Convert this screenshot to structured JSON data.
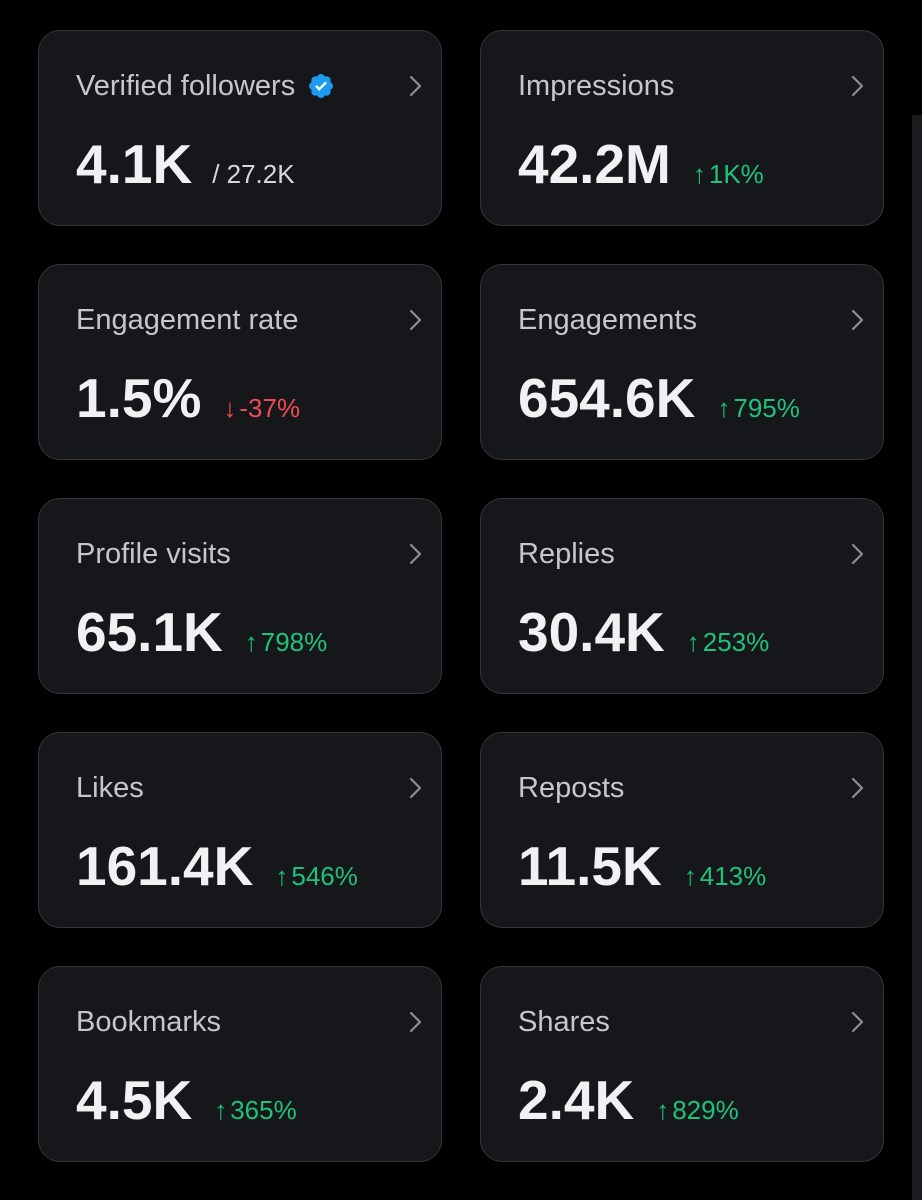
{
  "colors": {
    "background": "#000000",
    "card": "#16171b",
    "card_border": "#34363b",
    "positive": "#1ec27a",
    "negative": "#f04a55",
    "verified": "#1d9bf0"
  },
  "metrics": [
    {
      "title": "Verified followers",
      "value": "4.1K",
      "sub": "/ 27.2K"
    },
    {
      "title": "Impressions",
      "value": "42.2M",
      "change_arrow": "↑",
      "change": "1K%",
      "direction": "up"
    },
    {
      "title": "Engagement rate",
      "value": "1.5%",
      "change_arrow": "↓",
      "change": "-37%",
      "direction": "down"
    },
    {
      "title": "Engagements",
      "value": "654.6K",
      "change_arrow": "↑",
      "change": "795%",
      "direction": "up"
    },
    {
      "title": "Profile visits",
      "value": "65.1K",
      "change_arrow": "↑",
      "change": "798%",
      "direction": "up"
    },
    {
      "title": "Replies",
      "value": "30.4K",
      "change_arrow": "↑",
      "change": "253%",
      "direction": "up"
    },
    {
      "title": "Likes",
      "value": "161.4K",
      "change_arrow": "↑",
      "change": "546%",
      "direction": "up"
    },
    {
      "title": "Reposts",
      "value": "11.5K",
      "change_arrow": "↑",
      "change": "413%",
      "direction": "up"
    },
    {
      "title": "Bookmarks",
      "value": "4.5K",
      "change_arrow": "↑",
      "change": "365%",
      "direction": "up"
    },
    {
      "title": "Shares",
      "value": "2.4K",
      "change_arrow": "↑",
      "change": "829%",
      "direction": "up"
    }
  ]
}
